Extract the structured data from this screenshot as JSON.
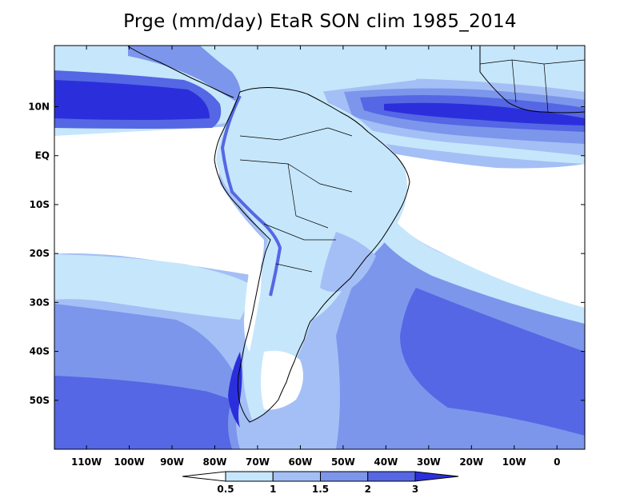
{
  "title": "Prge (mm/day) EtaR SON clim 1985_2014",
  "map": {
    "lat_ticks": [
      {
        "lat": 10,
        "label": "10N"
      },
      {
        "lat": 0,
        "label": "EQ"
      },
      {
        "lat": -10,
        "label": "10S"
      },
      {
        "lat": -20,
        "label": "20S"
      },
      {
        "lat": -30,
        "label": "30S"
      },
      {
        "lat": -40,
        "label": "40S"
      },
      {
        "lat": -50,
        "label": "50S"
      }
    ],
    "lon_ticks": [
      {
        "lon": -110,
        "label": "110W"
      },
      {
        "lon": -100,
        "label": "100W"
      },
      {
        "lon": -90,
        "label": "90W"
      },
      {
        "lon": -80,
        "label": "80W"
      },
      {
        "lon": -70,
        "label": "70W"
      },
      {
        "lon": -60,
        "label": "60W"
      },
      {
        "lon": -50,
        "label": "50W"
      },
      {
        "lon": -40,
        "label": "40W"
      },
      {
        "lon": -30,
        "label": "30W"
      },
      {
        "lon": -20,
        "label": "20W"
      },
      {
        "lon": -10,
        "label": "10W"
      },
      {
        "lon": 0,
        "label": "0"
      }
    ]
  },
  "colorbar": {
    "levels": [
      "0.5",
      "1",
      "1.5",
      "2",
      "3"
    ],
    "colors": [
      "#ffffff",
      "#c6e6fb",
      "#a4bff5",
      "#7c96ec",
      "#5567e4",
      "#2b2fdb"
    ]
  }
}
